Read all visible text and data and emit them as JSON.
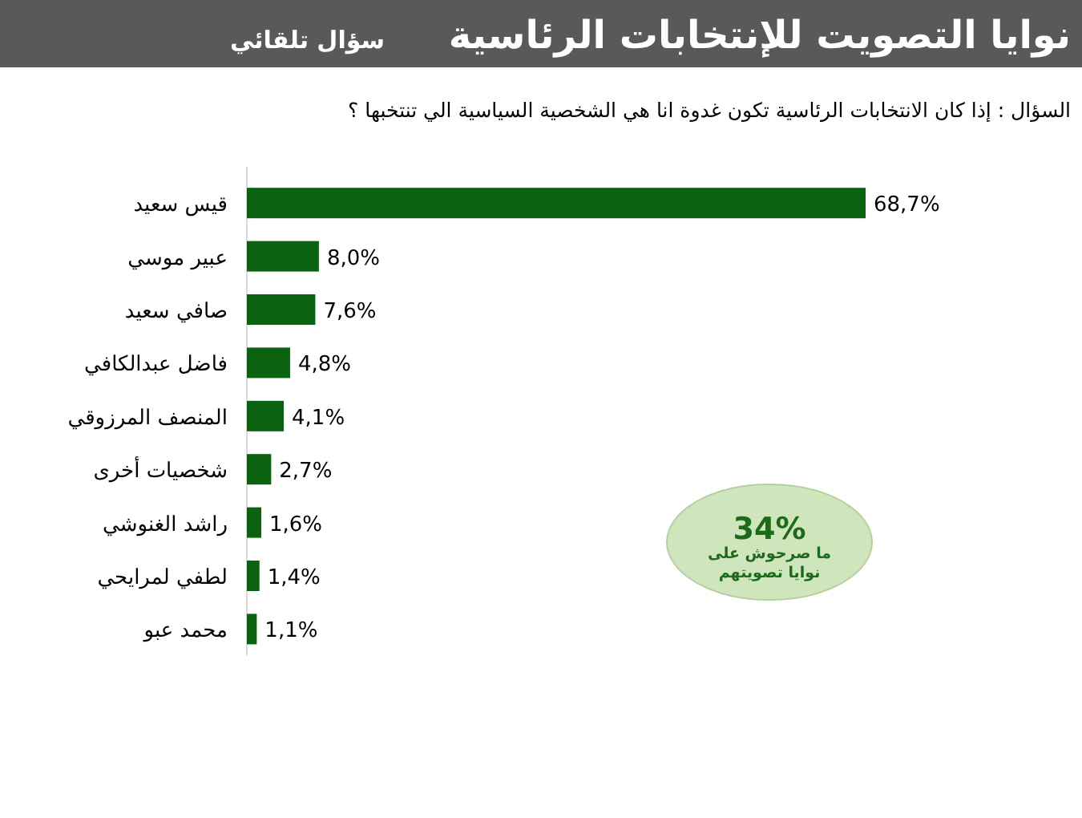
{
  "chart_data": {
    "type": "bar",
    "orientation": "horizontal",
    "title": "نوايا التصويت للإنتخابات الرئاسية",
    "subtitle": "سؤال تلقائي",
    "annotations": [
      "السؤال : إذا كان الانتخابات الرئاسية تكون غدوة انا هي الشخصية السياسية الي تنتخبها ؟",
      "34%",
      "ما صرحوش على نوايا تصويتهم"
    ],
    "categories": [
      "قيس سعيد",
      "عبير موسي",
      "صافي سعيد",
      "فاضل عبدالكافي",
      "المنصف المرزوقي",
      "شخصيات أخرى",
      "راشد الغنوشي",
      "لطفي لمرايحي",
      "محمد عبو"
    ],
    "values": [
      68.7,
      8.0,
      7.6,
      4.8,
      4.1,
      2.7,
      1.6,
      1.4,
      1.1
    ],
    "value_labels": [
      "68,7%",
      "8,0%",
      "7,6%",
      "4,8%",
      "4,1%",
      "2,7%",
      "1,6%",
      "1,4%",
      "1,1%"
    ],
    "color": "#0b6312"
  }
}
